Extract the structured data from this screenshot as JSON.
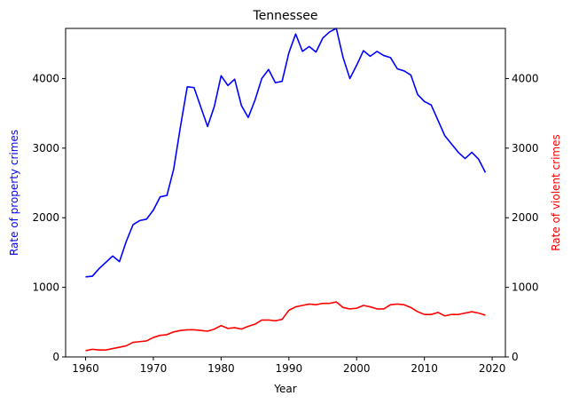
{
  "chart_data": {
    "type": "line",
    "title": "Tennessee",
    "xlabel": "Year",
    "ylabel_left": "Rate of property crimes",
    "ylabel_right": "Rate of violent crimes",
    "xlim": [
      1957.05,
      2021.95
    ],
    "ylim": [
      0,
      4720
    ],
    "x_ticks": [
      1960,
      1970,
      1980,
      1990,
      2000,
      2010,
      2020
    ],
    "y_ticks": [
      0,
      1000,
      2000,
      3000,
      4000
    ],
    "grid": false,
    "x": [
      1960,
      1961,
      1962,
      1963,
      1964,
      1965,
      1966,
      1967,
      1968,
      1969,
      1970,
      1971,
      1972,
      1973,
      1974,
      1975,
      1976,
      1977,
      1978,
      1979,
      1980,
      1981,
      1982,
      1983,
      1984,
      1985,
      1986,
      1987,
      1988,
      1989,
      1990,
      1991,
      1992,
      1993,
      1994,
      1995,
      1996,
      1997,
      1998,
      1999,
      2000,
      2001,
      2002,
      2003,
      2004,
      2005,
      2006,
      2007,
      2008,
      2009,
      2010,
      2011,
      2012,
      2013,
      2014,
      2015,
      2016,
      2017,
      2018,
      2019
    ],
    "series": [
      {
        "name": "Rate of property crimes",
        "axis": "left",
        "color": "#0000ff",
        "values": [
          1150,
          1160,
          1270,
          1360,
          1450,
          1370,
          1660,
          1900,
          1960,
          1980,
          2110,
          2300,
          2320,
          2700,
          3310,
          3880,
          3870,
          3590,
          3310,
          3600,
          4040,
          3900,
          3990,
          3610,
          3440,
          3690,
          4000,
          4130,
          3940,
          3960,
          4370,
          4640,
          4390,
          4460,
          4380,
          4580,
          4670,
          4720,
          4300,
          4000,
          4190,
          4400,
          4320,
          4390,
          4330,
          4300,
          4140,
          4110,
          4050,
          3770,
          3670,
          3620,
          3400,
          3180,
          3060,
          2940,
          2850,
          2940,
          2840,
          2650
        ]
      },
      {
        "name": "Rate of violent crimes",
        "axis": "right",
        "color": "#ff0000",
        "values": [
          90,
          110,
          100,
          100,
          120,
          140,
          160,
          210,
          220,
          230,
          280,
          310,
          320,
          360,
          380,
          390,
          390,
          380,
          370,
          400,
          450,
          410,
          420,
          400,
          440,
          470,
          530,
          530,
          520,
          540,
          670,
          720,
          740,
          760,
          750,
          770,
          770,
          790,
          710,
          690,
          700,
          740,
          720,
          690,
          690,
          750,
          760,
          750,
          710,
          650,
          610,
          610,
          640,
          590,
          610,
          610,
          630,
          650,
          630,
          600
        ]
      }
    ]
  }
}
